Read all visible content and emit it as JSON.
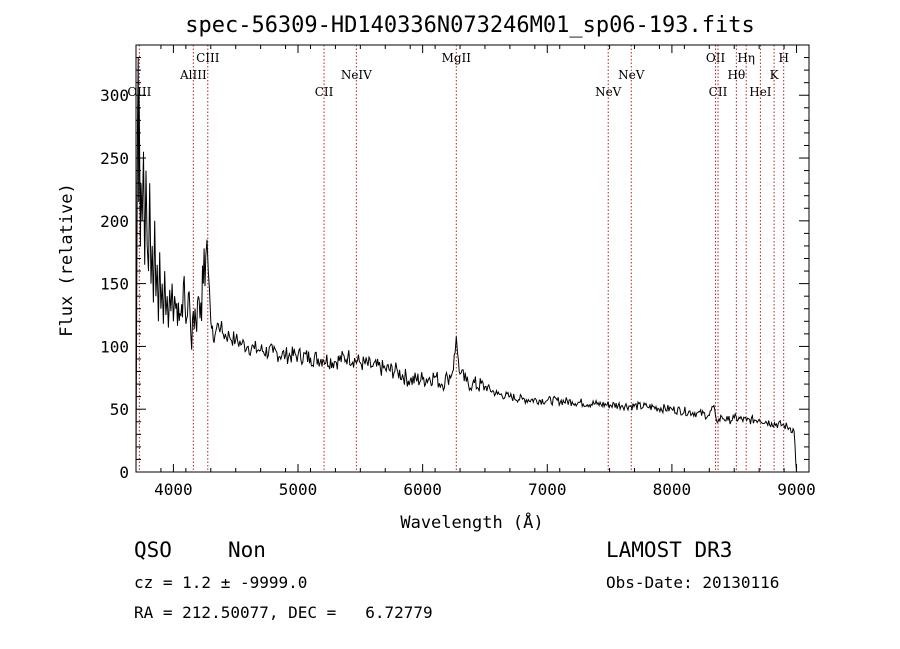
{
  "chart_data": {
    "type": "line",
    "title": "spec-56309-HD140336N073246M01_sp06-193.fits",
    "xlabel": "Wavelength (Å)",
    "ylabel": "Flux (relative)",
    "xlim": [
      3700,
      9100
    ],
    "ylim": [
      0,
      340
    ],
    "xticks": [
      4000,
      5000,
      6000,
      7000,
      8000,
      9000
    ],
    "yticks": [
      0,
      50,
      100,
      150,
      200,
      250,
      300
    ],
    "grid": false,
    "series": [
      {
        "name": "spectrum",
        "x": [
          3700,
          3712,
          3718,
          3722,
          3725,
          3730,
          3735,
          3740,
          3750,
          3760,
          3770,
          3780,
          3790,
          3800,
          3810,
          3820,
          3830,
          3840,
          3850,
          3860,
          3870,
          3880,
          3890,
          3900,
          3910,
          3920,
          3930,
          3940,
          3950,
          3960,
          3970,
          3980,
          3990,
          4000,
          4010,
          4020,
          4040,
          4060,
          4080,
          4100,
          4120,
          4140,
          4160,
          4180,
          4200,
          4220,
          4240,
          4260,
          4270,
          4280,
          4290,
          4300,
          4320,
          4340,
          4360,
          4380,
          4400,
          4450,
          4500,
          4550,
          4600,
          4650,
          4700,
          4800,
          4900,
          5000,
          5100,
          5200,
          5300,
          5400,
          5500,
          5600,
          5700,
          5800,
          5900,
          6000,
          6100,
          6150,
          6200,
          6240,
          6260,
          6270,
          6280,
          6300,
          6350,
          6400,
          6500,
          6600,
          6700,
          6800,
          7000,
          7200,
          7400,
          7600,
          7800,
          8000,
          8200,
          8300,
          8330,
          8350,
          8370,
          8400,
          8450,
          8500,
          8600,
          8700,
          8800,
          8900,
          8950,
          8980,
          9000
        ],
        "y": [
          0,
          275,
          330,
          215,
          300,
          250,
          180,
          230,
          200,
          255,
          165,
          240,
          180,
          160,
          230,
          150,
          180,
          135,
          200,
          140,
          165,
          120,
          175,
          130,
          150,
          118,
          160,
          125,
          140,
          115,
          145,
          128,
          150,
          120,
          140,
          130,
          135,
          125,
          150,
          118,
          142,
          110,
          128,
          120,
          140,
          135,
          150,
          172,
          185,
          160,
          145,
          120,
          105,
          112,
          118,
          115,
          110,
          108,
          105,
          102,
          100,
          98,
          97,
          95,
          93,
          93,
          91,
          90,
          88,
          92,
          87,
          84,
          82,
          80,
          73,
          74,
          76,
          70,
          75,
          80,
          95,
          108,
          95,
          78,
          72,
          70,
          68,
          62,
          60,
          58,
          57,
          56,
          54,
          53,
          52,
          50,
          47,
          45,
          52,
          45,
          40,
          44,
          41,
          43,
          41,
          42,
          39,
          37,
          35,
          33,
          0
        ]
      }
    ],
    "lines": [
      {
        "label": "OIII",
        "wavelength": 3727,
        "tier": 3
      },
      {
        "label": "AlIII",
        "wavelength": 4160,
        "tier": 2
      },
      {
        "label": "CIII",
        "wavelength": 4276,
        "tier": 1
      },
      {
        "label": "CII",
        "wavelength": 5209,
        "tier": 3
      },
      {
        "label": "NeIV",
        "wavelength": 5468,
        "tier": 2
      },
      {
        "label": "MgII",
        "wavelength": 6270,
        "tier": 1
      },
      {
        "label": "NeV",
        "wavelength": 7489,
        "tier": 3
      },
      {
        "label": "NeV",
        "wavelength": 7674,
        "tier": 2
      },
      {
        "label": "OII",
        "wavelength": 8350,
        "tier": 1
      },
      {
        "label": "CII",
        "wavelength": 8370,
        "tier": 3
      },
      {
        "label": "Hθ",
        "wavelength": 8517,
        "tier": 2
      },
      {
        "label": "Hη",
        "wavelength": 8596,
        "tier": 1
      },
      {
        "label": "HeI",
        "wavelength": 8710,
        "tier": 3
      },
      {
        "label": "K",
        "wavelength": 8820,
        "tier": 2
      },
      {
        "label": "H",
        "wavelength": 8897,
        "tier": 1
      }
    ]
  },
  "footer": {
    "object_class": "QSO",
    "object_subclass": "Non",
    "cz_text": "cz = 1.2 ± -9999.0",
    "coords_text": "RA = 212.50077, DEC =   6.72779",
    "survey": "LAMOST DR3",
    "obs_date": "Obs-Date: 20130116"
  },
  "colors": {
    "spectrum": "#000000",
    "line_markers": "#b22222",
    "axis": "#000000"
  }
}
